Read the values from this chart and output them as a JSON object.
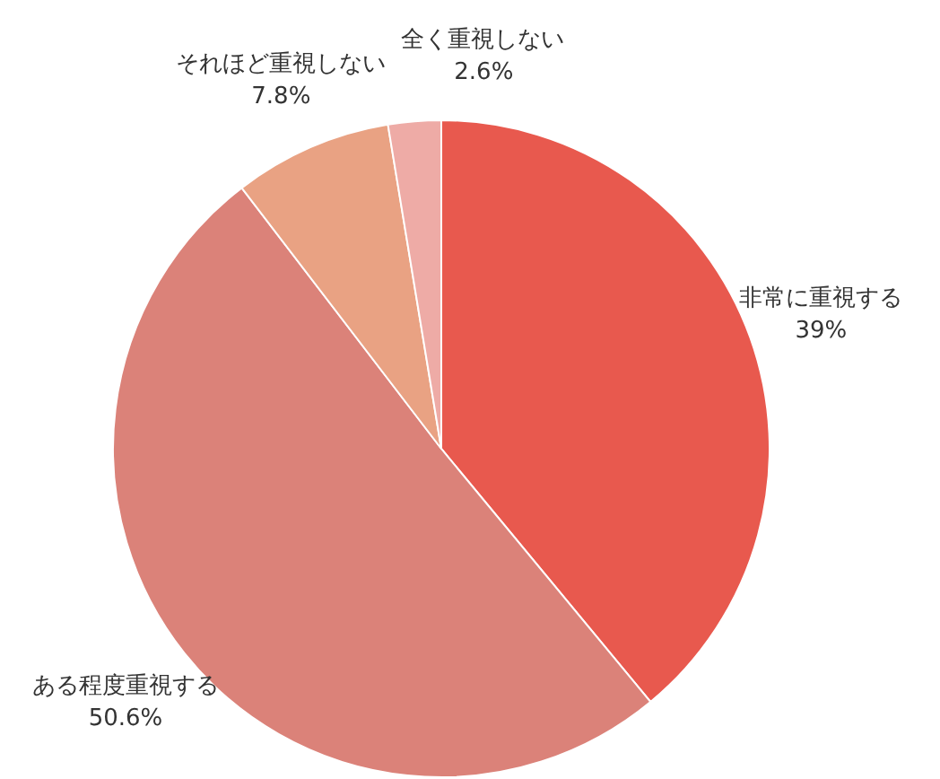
{
  "chart_data": {
    "type": "pie",
    "categories": [
      "非常に重視する",
      "ある程度重視する",
      "それほど重視しない",
      "全く重視しない"
    ],
    "values": [
      39,
      50.6,
      7.8,
      2.6
    ],
    "colors": [
      "#e8594e",
      "#db8279",
      "#e9a283",
      "#eeaba6"
    ],
    "value_labels": [
      "39%",
      "50.6%",
      "7.8%",
      "2.6%"
    ]
  }
}
